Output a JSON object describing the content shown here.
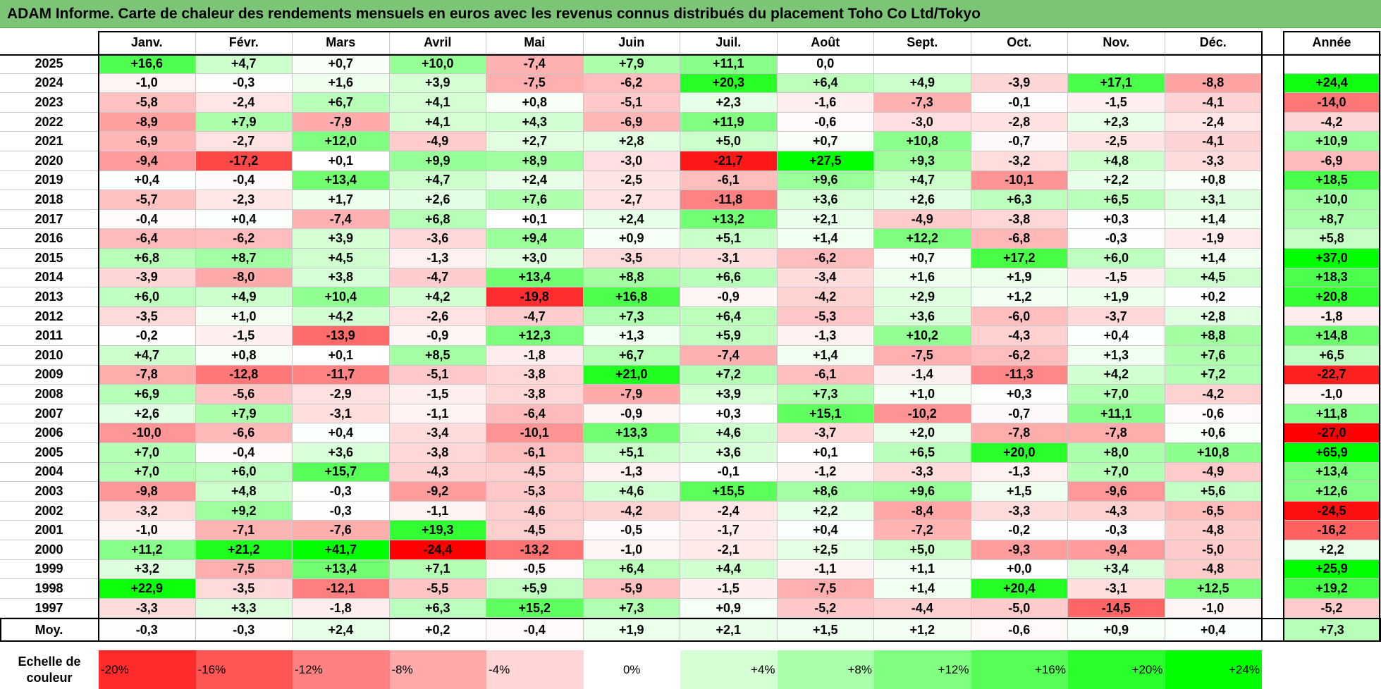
{
  "title": "ADAM Informe. Carte de chaleur des rendements mensuels en euros avec les revenus connus distribués du placement Toho Co Ltd/Tokyo",
  "months": [
    "Janv.",
    "Févr.",
    "Mars",
    "Avril",
    "Mai",
    "Juin",
    "Juil.",
    "Août",
    "Sept.",
    "Oct.",
    "Nov.",
    "Déc."
  ],
  "year_header": "Année",
  "avg_label": "Moy.",
  "legend_label": "Echelle de couleur",
  "colors": {
    "negative_max": "#ff0000",
    "neutral": "#ffffff",
    "positive_max": "#00ff00",
    "title_bg": "#7cc576"
  },
  "chart_data": {
    "type": "heatmap",
    "title": "ADAM Informe. Carte de chaleur des rendements mensuels en euros avec les revenus connus distribués du placement Toho Co Ltd/Tokyo",
    "columns": [
      "Janv.",
      "Févr.",
      "Mars",
      "Avril",
      "Mai",
      "Juin",
      "Juil.",
      "Août",
      "Sept.",
      "Oct.",
      "Nov.",
      "Déc.",
      "Année"
    ],
    "rows": [
      {
        "year": "2025",
        "values": [
          "+16,6",
          "+4,7",
          "+0,7",
          "+10,0",
          "-7,4",
          "+7,9",
          "+11,1",
          "0,0",
          "",
          "",
          "",
          "",
          ""
        ]
      },
      {
        "year": "2024",
        "values": [
          "-1,0",
          "-0,3",
          "+1,6",
          "+3,9",
          "-7,5",
          "-6,2",
          "+20,3",
          "+6,4",
          "+4,9",
          "-3,9",
          "+17,1",
          "-8,8",
          "+24,4"
        ]
      },
      {
        "year": "2023",
        "values": [
          "-5,8",
          "-2,4",
          "+6,7",
          "+4,1",
          "+0,8",
          "-5,1",
          "+2,3",
          "-1,6",
          "-7,3",
          "-0,1",
          "-1,5",
          "-4,1",
          "-14,0"
        ]
      },
      {
        "year": "2022",
        "values": [
          "-8,9",
          "+7,9",
          "-7,9",
          "+4,1",
          "+4,3",
          "-6,9",
          "+11,9",
          "-0,6",
          "-3,0",
          "-2,8",
          "+2,3",
          "-2,4",
          "-4,2"
        ]
      },
      {
        "year": "2021",
        "values": [
          "-6,9",
          "-2,7",
          "+12,0",
          "-4,9",
          "+2,7",
          "+2,8",
          "+5,0",
          "+0,7",
          "+10,8",
          "-0,7",
          "-2,5",
          "-4,1",
          "+10,9"
        ]
      },
      {
        "year": "2020",
        "values": [
          "-9,4",
          "-17,2",
          "+0,1",
          "+9,9",
          "+8,9",
          "-3,0",
          "-21,7",
          "+27,5",
          "+9,3",
          "-3,2",
          "+4,8",
          "-3,3",
          "-6,9"
        ]
      },
      {
        "year": "2019",
        "values": [
          "+0,4",
          "-0,4",
          "+13,4",
          "+4,7",
          "+2,4",
          "-2,5",
          "-6,1",
          "+9,6",
          "+4,7",
          "-10,1",
          "+2,2",
          "+0,8",
          "+18,5"
        ]
      },
      {
        "year": "2018",
        "values": [
          "-5,7",
          "-2,3",
          "+1,7",
          "+2,6",
          "+7,6",
          "-2,7",
          "-11,8",
          "+3,6",
          "+2,6",
          "+6,3",
          "+6,5",
          "+3,1",
          "+10,0"
        ]
      },
      {
        "year": "2017",
        "values": [
          "-0,4",
          "+0,4",
          "-7,4",
          "+6,8",
          "+0,1",
          "+2,4",
          "+13,2",
          "+2,1",
          "-4,9",
          "-3,8",
          "+0,3",
          "+1,4",
          "+8,7"
        ]
      },
      {
        "year": "2016",
        "values": [
          "-6,4",
          "-6,2",
          "+3,9",
          "-3,6",
          "+9,4",
          "+0,9",
          "+5,1",
          "+1,4",
          "+12,2",
          "-6,8",
          "-0,3",
          "-1,9",
          "+5,8"
        ]
      },
      {
        "year": "2015",
        "values": [
          "+6,8",
          "+8,7",
          "+4,5",
          "-1,3",
          "+3,0",
          "-3,5",
          "-3,1",
          "-6,2",
          "+0,7",
          "+17,2",
          "+6,0",
          "+1,4",
          "+37,0"
        ]
      },
      {
        "year": "2014",
        "values": [
          "-3,9",
          "-8,0",
          "+3,8",
          "-4,7",
          "+13,4",
          "+8,8",
          "+6,6",
          "-3,4",
          "+1,6",
          "+1,9",
          "-1,5",
          "+4,5",
          "+18,3"
        ]
      },
      {
        "year": "2013",
        "values": [
          "+6,0",
          "+4,9",
          "+10,4",
          "+4,2",
          "-19,8",
          "+16,8",
          "-0,9",
          "-4,2",
          "+2,9",
          "+1,2",
          "+1,9",
          "+0,2",
          "+20,8"
        ]
      },
      {
        "year": "2012",
        "values": [
          "-3,5",
          "+1,0",
          "+4,2",
          "-2,6",
          "-4,7",
          "+7,3",
          "+6,4",
          "-5,3",
          "+3,6",
          "-6,0",
          "-3,7",
          "+2,8",
          "-1,8"
        ]
      },
      {
        "year": "2011",
        "values": [
          "-0,2",
          "-1,5",
          "-13,9",
          "-0,9",
          "+12,3",
          "+1,3",
          "+5,9",
          "-1,3",
          "+10,2",
          "-4,3",
          "+0,4",
          "+8,8",
          "+14,8"
        ]
      },
      {
        "year": "2010",
        "values": [
          "+4,7",
          "+0,8",
          "+0,1",
          "+8,5",
          "-1,8",
          "+6,7",
          "-7,4",
          "+1,4",
          "-7,5",
          "-6,2",
          "+1,3",
          "+7,6",
          "+6,5"
        ]
      },
      {
        "year": "2009",
        "values": [
          "-7,8",
          "-12,8",
          "-11,7",
          "-5,1",
          "-3,8",
          "+21,0",
          "+7,2",
          "-6,1",
          "-1,4",
          "-11,3",
          "+4,2",
          "+7,2",
          "-22,7"
        ]
      },
      {
        "year": "2008",
        "values": [
          "+6,9",
          "-5,6",
          "-2,9",
          "-1,5",
          "-3,8",
          "-7,9",
          "+3,9",
          "+7,3",
          "+1,0",
          "+0,3",
          "+7,0",
          "-4,2",
          "-1,0"
        ]
      },
      {
        "year": "2007",
        "values": [
          "+2,6",
          "+7,9",
          "-3,1",
          "-1,1",
          "-6,4",
          "-0,9",
          "+0,3",
          "+15,1",
          "-10,2",
          "-0,7",
          "+11,1",
          "-0,6",
          "+11,8"
        ]
      },
      {
        "year": "2006",
        "values": [
          "-10,0",
          "-6,6",
          "+0,4",
          "-3,4",
          "-10,1",
          "+13,3",
          "+4,6",
          "-3,7",
          "+2,0",
          "-7,8",
          "-7,8",
          "+0,6",
          "-27,0"
        ]
      },
      {
        "year": "2005",
        "values": [
          "+7,0",
          "-0,4",
          "+3,6",
          "-3,8",
          "-6,1",
          "+5,1",
          "+3,6",
          "+0,1",
          "+6,5",
          "+20,0",
          "+8,0",
          "+10,8",
          "+65,9"
        ]
      },
      {
        "year": "2004",
        "values": [
          "+7,0",
          "+6,0",
          "+15,7",
          "-4,3",
          "-4,5",
          "-1,3",
          "-0,1",
          "-1,2",
          "-3,3",
          "-1,3",
          "+7,0",
          "-4,9",
          "+13,4"
        ]
      },
      {
        "year": "2003",
        "values": [
          "-9,8",
          "+4,8",
          "-0,3",
          "-9,2",
          "-5,3",
          "+4,6",
          "+15,5",
          "+8,6",
          "+9,6",
          "+1,5",
          "-9,6",
          "+5,6",
          "+12,6"
        ]
      },
      {
        "year": "2002",
        "values": [
          "-3,2",
          "+9,2",
          "-0,3",
          "-1,1",
          "-4,6",
          "-4,2",
          "-2,4",
          "+2,2",
          "-8,4",
          "-3,3",
          "-4,3",
          "-6,5",
          "-24,5"
        ]
      },
      {
        "year": "2001",
        "values": [
          "-1,0",
          "-7,1",
          "-7,6",
          "+19,3",
          "-4,5",
          "-0,5",
          "-1,7",
          "+0,4",
          "-7,2",
          "-0,2",
          "-0,3",
          "-4,8",
          "-16,2"
        ]
      },
      {
        "year": "2000",
        "values": [
          "+11,2",
          "+21,2",
          "+41,7",
          "-24,4",
          "-13,2",
          "-1,0",
          "-2,1",
          "+2,5",
          "+5,0",
          "-9,3",
          "-9,4",
          "-5,0",
          "+2,2"
        ]
      },
      {
        "year": "1999",
        "values": [
          "+3,2",
          "-7,5",
          "+13,4",
          "+7,1",
          "-0,5",
          "+6,4",
          "+4,4",
          "-1,1",
          "+1,1",
          "+0,0",
          "+3,4",
          "-4,8",
          "+25,9"
        ]
      },
      {
        "year": "1998",
        "values": [
          "+22,9",
          "-3,5",
          "-12,1",
          "-5,5",
          "+5,9",
          "-5,9",
          "-1,5",
          "-7,5",
          "+1,4",
          "+20,4",
          "-3,1",
          "+12,5",
          "+19,2"
        ]
      },
      {
        "year": "1997",
        "values": [
          "-3,3",
          "+3,3",
          "-1,8",
          "+6,3",
          "+15,2",
          "+7,3",
          "+0,9",
          "-5,2",
          "-4,4",
          "-5,0",
          "-14,5",
          "-1,0",
          "-5,2"
        ]
      }
    ],
    "average": [
      "-0,3",
      "-0,3",
      "+2,4",
      "+0,2",
      "-0,4",
      "+1,9",
      "+2,1",
      "+1,5",
      "+1,2",
      "-0,6",
      "+0,9",
      "+0,4",
      "+7,3"
    ],
    "scale": [
      {
        "label": "-20%",
        "value": -20
      },
      {
        "label": "-16%",
        "value": -16
      },
      {
        "label": "-12%",
        "value": -12
      },
      {
        "label": "-8%",
        "value": -8
      },
      {
        "label": "-4%",
        "value": -4
      },
      {
        "label": "0%",
        "value": 0
      },
      {
        "label": "+4%",
        "value": 4
      },
      {
        "label": "+8%",
        "value": 8
      },
      {
        "label": "+12%",
        "value": 12
      },
      {
        "label": "+16%",
        "value": 16
      },
      {
        "label": "+20%",
        "value": 20
      },
      {
        "label": "+24%",
        "value": 24
      }
    ]
  }
}
